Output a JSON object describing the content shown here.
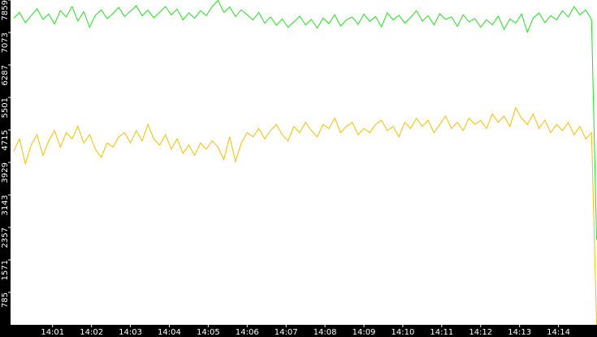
{
  "chart_data": {
    "type": "line",
    "x": [
      840,
      840.15,
      840.3,
      840.45,
      840.6,
      840.75,
      840.9,
      841.05,
      841.2,
      841.35,
      841.5,
      841.65,
      841.8,
      841.95,
      842.1,
      842.25,
      842.4,
      842.55,
      842.7,
      842.85,
      843,
      843.15,
      843.3,
      843.45,
      843.6,
      843.75,
      843.9,
      844.05,
      844.2,
      844.35,
      844.5,
      844.65,
      844.8,
      844.95,
      845.1,
      845.25,
      845.4,
      845.55,
      845.7,
      845.85,
      846,
      846.15,
      846.3,
      846.45,
      846.6,
      846.75,
      846.9,
      847.05,
      847.2,
      847.35,
      847.5,
      847.65,
      847.8,
      847.95,
      848.1,
      848.25,
      848.4,
      848.55,
      848.7,
      848.85,
      849,
      849.15,
      849.3,
      849.45,
      849.6,
      849.75,
      849.9,
      850.05,
      850.2,
      850.35,
      850.5,
      850.65,
      850.8,
      850.95,
      851.1,
      851.25,
      851.4,
      851.55,
      851.7,
      851.85,
      852,
      852.15,
      852.3,
      852.45,
      852.6,
      852.75,
      852.9,
      853.05,
      853.2,
      853.35,
      853.5,
      853.65,
      853.8,
      853.95,
      854.1,
      854.25,
      854.4,
      854.55,
      854.7,
      854.85,
      854.98
    ],
    "series": [
      {
        "color": "#22dd22",
        "values": [
          7420,
          7560,
          7310,
          7480,
          7650,
          7390,
          7520,
          7280,
          7600,
          7450,
          7700,
          7350,
          7580,
          7200,
          7490,
          7620,
          7410,
          7530,
          7680,
          7460,
          7590,
          7720,
          7480,
          7610,
          7430,
          7560,
          7700,
          7500,
          7640,
          7380,
          7550,
          7420,
          7600,
          7480,
          7700,
          7850,
          7560,
          7690,
          7460,
          7620,
          7500,
          7380,
          7560,
          7300,
          7450,
          7250,
          7400,
          7200,
          7330,
          7470,
          7260,
          7390,
          7180,
          7420,
          7290,
          7500,
          7230,
          7380,
          7450,
          7270,
          7520,
          7340,
          7460,
          7210,
          7550,
          7380,
          7490,
          7300,
          7440,
          7600,
          7350,
          7480,
          7260,
          7530,
          7390,
          7450,
          7220,
          7500,
          7330,
          7410,
          7200,
          7380,
          7260,
          7470,
          7150,
          7400,
          7300,
          7520,
          7080,
          7420,
          7550,
          7310,
          7480,
          7380,
          7600,
          7450,
          7700,
          7500,
          7620,
          7380,
          2060
        ]
      },
      {
        "color": "#f0c000",
        "values": [
          4200,
          4500,
          3900,
          4350,
          4600,
          4100,
          4450,
          4700,
          4300,
          4650,
          4500,
          4800,
          4400,
          4600,
          4250,
          4050,
          4400,
          4300,
          4550,
          4650,
          4400,
          4700,
          4450,
          4850,
          4500,
          4350,
          4600,
          4250,
          4500,
          4150,
          4350,
          4100,
          4400,
          4250,
          4450,
          4300,
          4000,
          4550,
          3950,
          4400,
          4650,
          4550,
          4750,
          4500,
          4700,
          4850,
          4600,
          4450,
          4800,
          4650,
          4900,
          4700,
          4550,
          4850,
          4750,
          5000,
          4650,
          4800,
          4900,
          4600,
          4750,
          4650,
          4850,
          4950,
          4700,
          4800,
          4550,
          4900,
          4750,
          5000,
          4800,
          4950,
          4650,
          4850,
          5050,
          4750,
          4900,
          4700,
          5000,
          4850,
          4950,
          4750,
          5100,
          4900,
          5050,
          4800,
          5250,
          5000,
          4850,
          5100,
          4750,
          4950,
          4650,
          4850,
          4700,
          4900,
          4600,
          4800,
          4500,
          4650,
          0
        ]
      }
    ],
    "xlim": [
      839.92,
      854.99
    ],
    "xticks": [
      {
        "value": 841,
        "label": "14:01"
      },
      {
        "value": 842,
        "label": "14:02"
      },
      {
        "value": 843,
        "label": "14:03"
      },
      {
        "value": 844,
        "label": "14:04"
      },
      {
        "value": 845,
        "label": "14:05"
      },
      {
        "value": 846,
        "label": "14:06"
      },
      {
        "value": 847,
        "label": "14:07"
      },
      {
        "value": 848,
        "label": "14:08"
      },
      {
        "value": 849,
        "label": "14:09"
      },
      {
        "value": 850,
        "label": "14:10"
      },
      {
        "value": 851,
        "label": "14:11"
      },
      {
        "value": 852,
        "label": "14:12"
      },
      {
        "value": 853,
        "label": "14:13"
      },
      {
        "value": 854,
        "label": "14:14"
      }
    ],
    "ylim": [
      0,
      7859
    ],
    "yticks": [
      785,
      1571,
      2357,
      3143,
      3929,
      4715,
      5501,
      6287,
      7073,
      7859
    ]
  }
}
